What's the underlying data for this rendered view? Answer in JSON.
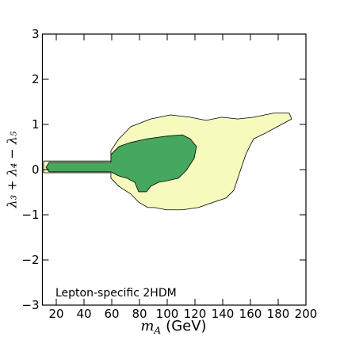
{
  "chart_data": {
    "type": "contour",
    "annotation": "Lepton-specific 2HDM",
    "xlabel": {
      "symbol": "m",
      "subscript": "A",
      "unit": "(GeV)"
    },
    "ylabel": "λ₃ + λ₄ − λ₅",
    "xlim": [
      10,
      200
    ],
    "ylim": [
      -3,
      3
    ],
    "xticks": [
      20,
      40,
      60,
      80,
      100,
      120,
      140,
      160,
      180,
      200
    ],
    "yticks": [
      {
        "value": -3,
        "label": "−3"
      },
      {
        "value": -2,
        "label": "−2"
      },
      {
        "value": -1,
        "label": "−1"
      },
      0,
      1,
      2,
      3
    ],
    "regions": [
      {
        "color": "#f6fabd",
        "x": [
          10.9,
          59.4,
          59.4,
          65.1,
          73.7,
          88,
          102.3,
          116.6,
          128,
          139.4,
          150.9,
          162.3,
          176.6,
          188,
          189.7,
          179.4,
          170.9,
          162.3,
          159.4,
          156.6,
          153.7,
          150.9,
          148,
          142.3,
          133.7,
          122.3,
          110.9,
          99.4,
          90.9,
          86.1,
          79.4,
          73.7,
          65.1,
          59.4,
          59.4,
          10.9
        ],
        "y": [
          0.19,
          0.19,
          0.42,
          0.68,
          0.95,
          1.12,
          1.21,
          1.16,
          1.09,
          1.16,
          1.12,
          1.16,
          1.25,
          1.25,
          1.12,
          0.95,
          0.81,
          0.68,
          0.51,
          0.33,
          0.07,
          -0.19,
          -0.46,
          -0.63,
          -0.72,
          -0.84,
          -0.89,
          -0.89,
          -0.84,
          -0.84,
          -0.72,
          -0.54,
          -0.37,
          -0.19,
          -0.07,
          -0.07
        ]
      },
      {
        "color": "#45a85e",
        "x": [
          14.9,
          59.4,
          59.4,
          65.1,
          73.7,
          85.1,
          99.4,
          110.9,
          116.6,
          121.1,
          119.4,
          113.7,
          108,
          99.4,
          93.7,
          88,
          85.1,
          79.4,
          76.6,
          70.9,
          65.1,
          59.4,
          14.9,
          12.6
        ],
        "y": [
          0.16,
          0.16,
          0.33,
          0.51,
          0.6,
          0.68,
          0.74,
          0.77,
          0.68,
          0.51,
          0.25,
          -0.02,
          -0.19,
          -0.25,
          -0.28,
          -0.37,
          -0.49,
          -0.49,
          -0.28,
          -0.19,
          -0.14,
          -0.05,
          -0.05,
          0.05
        ]
      }
    ]
  }
}
